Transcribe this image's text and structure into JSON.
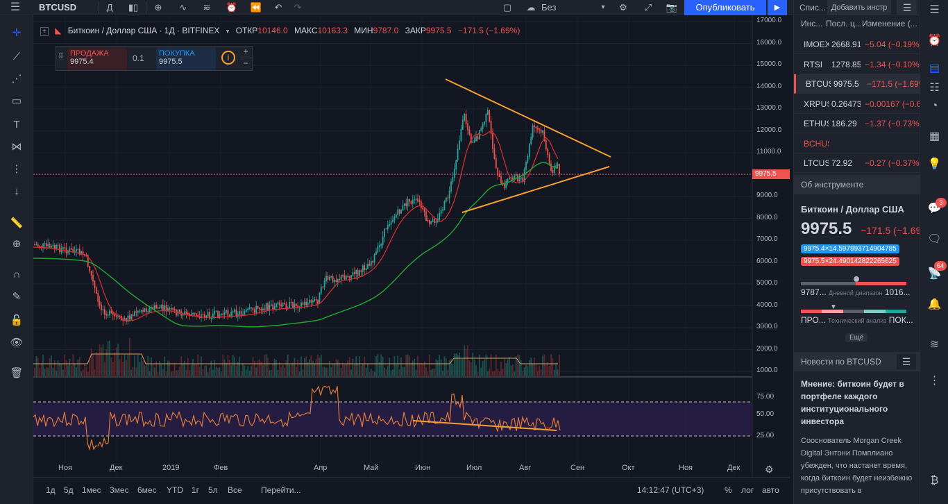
{
  "topbar": {
    "symbol": "BTCUSD",
    "interval": "Д",
    "layout_name": "Без названия",
    "publish": "Опубликовать"
  },
  "legend": {
    "title": "Биткоин / Доллар США · 1Д · BITFINEX",
    "o_label": "ОТКР",
    "o": "10146.0",
    "h_label": "МАКС",
    "h": "10163.3",
    "l_label": "МИН",
    "l": "9787.0",
    "c_label": "ЗАКР",
    "c": "9975.5",
    "change": "−171.5 (−1.69%)"
  },
  "order": {
    "sell_label": "ПРОДАЖА",
    "sell": "9975.4",
    "qty": "0.1",
    "buy_label": "ПОКУПКА",
    "buy": "9975.5"
  },
  "price_axis": [
    "17000.0",
    "16000.0",
    "15000.0",
    "14000.0",
    "13000.0",
    "12000.0",
    "11000.0",
    "10000.0",
    "9000.0",
    "8000.0",
    "7000.0",
    "6000.0",
    "5000.0",
    "4000.0",
    "3000.0",
    "2000.0",
    "1000.0"
  ],
  "last_price": "9975.5",
  "rsi_axis": [
    "75.00",
    "50.00",
    "25.00"
  ],
  "time_axis": [
    "Ноя",
    "Дек",
    "2019",
    "Фев",
    "Апр",
    "Май",
    "Июн",
    "Июл",
    "Авг",
    "Сен",
    "Окт",
    "Ноя",
    "Дек"
  ],
  "timeframes": [
    "1д",
    "5д",
    "1мес",
    "3мес",
    "6мес",
    "YTD",
    "1г",
    "5л",
    "Все"
  ],
  "goto": "Перейти...",
  "clock": "14:12:47 (UTC+3)",
  "scale_opts": [
    "%",
    "лог",
    "авто"
  ],
  "watchlist": {
    "tab1": "Спис...",
    "tab2": "Добавить инстр",
    "col1": "Инс...",
    "col2": "Посл. ц...",
    "col3": "Изменение (...",
    "rows": [
      {
        "sym": "IMOEX",
        "last": "2668.91",
        "chg": "−5.04 (−0.19%)"
      },
      {
        "sym": "RTSI",
        "last": "1278.85",
        "chg": "−1.34 (−0.10%)"
      },
      {
        "sym": "BTCUSD",
        "last": "9975.5",
        "chg": "−171.5 (−1.69%)"
      },
      {
        "sym": "XRPUSD",
        "last": "0.26473",
        "chg": "−0.00167 (−0.63%)"
      },
      {
        "sym": "ETHUSD",
        "last": "186.29",
        "chg": "−1.37 (−0.73%)"
      },
      {
        "sym": "BCHUSD",
        "last": "",
        "chg": ""
      },
      {
        "sym": "LTCUSD",
        "last": "72.92",
        "chg": "−0.27 (−0.37%)"
      }
    ]
  },
  "details": {
    "header": "Об инструменте",
    "name": "Биткоин / Доллар США",
    "price": "9975.5",
    "change": "−171.5 (−1.69%)",
    "bid": "9975.4×14.597893714904785",
    "ask": "9975.5×24.490142822265625",
    "day_low": "9787...",
    "day_label": "Дневной диапазон",
    "day_high": "1016...",
    "tech_left": "ПРО...",
    "tech_label": "Технический анализ",
    "tech_right": "ПОК...",
    "more": "Ещё"
  },
  "news": {
    "header": "Новости по BTCUSD",
    "title": "Мнение: биткоин будет в портфеле каждого институционального инвестора",
    "body": "Сооснователь Morgan Creek Digital Энтони Помплиано убежден, что настанет время, когда биткоин будет неизбежно присутствовать в"
  },
  "badges": {
    "chat": "3",
    "ideas": "64"
  }
}
